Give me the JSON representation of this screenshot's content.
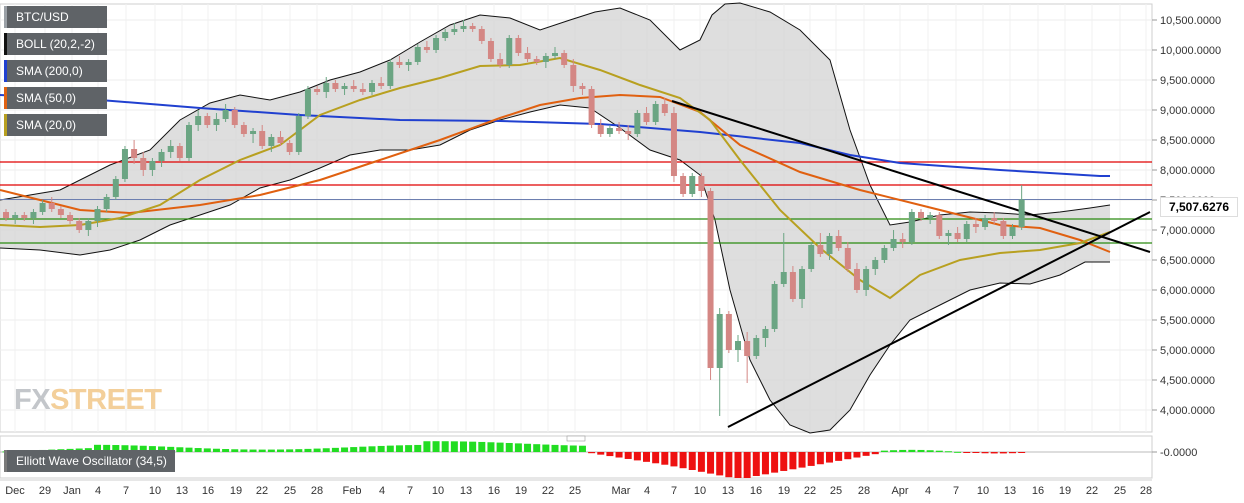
{
  "legend": [
    {
      "label": "BTC/USD",
      "color": "#9aa0a6"
    },
    {
      "label": "BOLL (20,2,-2)",
      "color": "#111111"
    },
    {
      "label": "SMA (200,0)",
      "color": "#2040d0"
    },
    {
      "label": "SMA (50,0)",
      "color": "#e06010"
    },
    {
      "label": "SMA (20,0)",
      "color": "#b8a020"
    }
  ],
  "watermark": {
    "fx": "FX",
    "rest": "STREET"
  },
  "price_tag": "7,507.6276",
  "ewo_label": "Elliott Wave Oscillator (34,5)",
  "ewo_axis_label": "-0.0000",
  "colors": {
    "up": "#6ba583",
    "down": "#d48784",
    "resistance": "#e00000",
    "support": "#2a8a10",
    "band_fill": "#d6d6d6",
    "ewo_pos": "#22dd22",
    "ewo_neg": "#ee1111"
  },
  "chart_data": {
    "type": "candlestick",
    "ylim": [
      3800000,
      10800000
    ],
    "y_ticks": [
      "10,500.0000",
      "10,000.0000",
      "9,500.0000",
      "9,000.0000",
      "8,500.0000",
      "8,000.0000",
      "7,500.0000",
      "7,000.0000",
      "6,500.0000",
      "6,000.0000",
      "5,500.0000",
      "5,000.0000",
      "4,500.0000",
      "4,000.0000"
    ],
    "y_tick_values": [
      10500000,
      10000000,
      9500000,
      9000000,
      8500000,
      8000000,
      7500000,
      7000000,
      6500000,
      6000000,
      5500000,
      5000000,
      4500000,
      4000000
    ],
    "x_ticks": [
      "Dec",
      "29",
      "Jan",
      "4",
      "7",
      "10",
      "13",
      "16",
      "19",
      "22",
      "25",
      "28",
      "Feb",
      "4",
      "7",
      "10",
      "13",
      "16",
      "19",
      "22",
      "25",
      "Mar",
      "4",
      "7",
      "10",
      "13",
      "16",
      "19",
      "22",
      "25",
      "28",
      "Apr",
      "4",
      "7",
      "10",
      "13",
      "16",
      "19",
      "22",
      "25",
      "28"
    ],
    "last_price": 7507627.6,
    "candles": [
      [
        7300000,
        7350000,
        7150000,
        7200000
      ],
      [
        7200000,
        7300000,
        7100000,
        7250000
      ],
      [
        7250000,
        7300000,
        7150000,
        7200000
      ],
      [
        7200000,
        7350000,
        7100000,
        7300000
      ],
      [
        7300000,
        7500000,
        7250000,
        7450000
      ],
      [
        7450000,
        7550000,
        7300000,
        7350000
      ],
      [
        7350000,
        7400000,
        7200000,
        7250000
      ],
      [
        7250000,
        7300000,
        7100000,
        7150000
      ],
      [
        7150000,
        7200000,
        6950000,
        7000000
      ],
      [
        7000000,
        7200000,
        6900000,
        7150000
      ],
      [
        7150000,
        7400000,
        7050000,
        7350000
      ],
      [
        7350000,
        7600000,
        7300000,
        7550000
      ],
      [
        7550000,
        7900000,
        7500000,
        7850000
      ],
      [
        7850000,
        8400000,
        7800000,
        8350000
      ],
      [
        8350000,
        8500000,
        8100000,
        8200000
      ],
      [
        8200000,
        8300000,
        7900000,
        8000000
      ],
      [
        8000000,
        8200000,
        7900000,
        8150000
      ],
      [
        8150000,
        8350000,
        8050000,
        8300000
      ],
      [
        8300000,
        8500000,
        8200000,
        8400000
      ],
      [
        8400000,
        8450000,
        8150000,
        8200000
      ],
      [
        8200000,
        8800000,
        8150000,
        8750000
      ],
      [
        8750000,
        9000000,
        8650000,
        8900000
      ],
      [
        8900000,
        8950000,
        8700000,
        8750000
      ],
      [
        8750000,
        8950000,
        8650000,
        8850000
      ],
      [
        8850000,
        9100000,
        8800000,
        9000000
      ],
      [
        9000000,
        9050000,
        8700000,
        8750000
      ],
      [
        8750000,
        8800000,
        8550000,
        8600000
      ],
      [
        8600000,
        8700000,
        8450000,
        8650000
      ],
      [
        8650000,
        8750000,
        8350000,
        8400000
      ],
      [
        8400000,
        8600000,
        8300000,
        8550000
      ],
      [
        8550000,
        8650000,
        8400000,
        8450000
      ],
      [
        8450000,
        8500000,
        8250000,
        8300000
      ],
      [
        8300000,
        8950000,
        8250000,
        8900000
      ],
      [
        8900000,
        9400000,
        8850000,
        9350000
      ],
      [
        9350000,
        9400000,
        9250000,
        9300000
      ],
      [
        9300000,
        9550000,
        9200000,
        9450000
      ],
      [
        9450000,
        9500000,
        9300000,
        9350000
      ],
      [
        9350000,
        9450000,
        9250000,
        9400000
      ],
      [
        9400000,
        9500000,
        9300000,
        9350000
      ],
      [
        9350000,
        9450000,
        9250000,
        9300000
      ],
      [
        9300000,
        9500000,
        9250000,
        9450000
      ],
      [
        9450000,
        9550000,
        9350000,
        9400000
      ],
      [
        9400000,
        9850000,
        9350000,
        9800000
      ],
      [
        9800000,
        9900000,
        9700000,
        9750000
      ],
      [
        9750000,
        9850000,
        9650000,
        9800000
      ],
      [
        9800000,
        10100000,
        9750000,
        10050000
      ],
      [
        10050000,
        10150000,
        9950000,
        10000000
      ],
      [
        10000000,
        10250000,
        9950000,
        10200000
      ],
      [
        10200000,
        10350000,
        10150000,
        10300000
      ],
      [
        10300000,
        10450000,
        10250000,
        10350000
      ],
      [
        10350000,
        10500000,
        10300000,
        10400000
      ],
      [
        10400000,
        10450000,
        10300000,
        10350000
      ],
      [
        10350000,
        10400000,
        10100000,
        10150000
      ],
      [
        10150000,
        10200000,
        9800000,
        9850000
      ],
      [
        9850000,
        9950000,
        9700000,
        9750000
      ],
      [
        9750000,
        10250000,
        9700000,
        10200000
      ],
      [
        10200000,
        10250000,
        9900000,
        9950000
      ],
      [
        9950000,
        10050000,
        9800000,
        9850000
      ],
      [
        9850000,
        9900000,
        9750000,
        9800000
      ],
      [
        9800000,
        9950000,
        9700000,
        9900000
      ],
      [
        9900000,
        10050000,
        9850000,
        9950000
      ],
      [
        9950000,
        10000000,
        9700000,
        9750000
      ],
      [
        9750000,
        9850000,
        9300000,
        9400000
      ],
      [
        9400000,
        9450000,
        9250000,
        9350000
      ],
      [
        9350000,
        9400000,
        8700000,
        8750000
      ],
      [
        8750000,
        8850000,
        8550000,
        8600000
      ],
      [
        8600000,
        8750000,
        8550000,
        8700000
      ],
      [
        8700000,
        8800000,
        8600000,
        8650000
      ],
      [
        8650000,
        8750000,
        8500000,
        8600000
      ],
      [
        8600000,
        9000000,
        8550000,
        8950000
      ],
      [
        8950000,
        9050000,
        8750000,
        8800000
      ],
      [
        8800000,
        9150000,
        8750000,
        9100000
      ],
      [
        9100000,
        9200000,
        8900000,
        8950000
      ],
      [
        8950000,
        9050000,
        7800000,
        7900000
      ],
      [
        7900000,
        7950000,
        7550000,
        7600000
      ],
      [
        7600000,
        7950000,
        7550000,
        7900000
      ],
      [
        7900000,
        7950000,
        7550000,
        7650000
      ],
      [
        7650000,
        7700000,
        4500000,
        4700000
      ],
      [
        4700000,
        5700000,
        3900000,
        5600000
      ],
      [
        5600000,
        5650000,
        4950000,
        5000000
      ],
      [
        5000000,
        5250000,
        4800000,
        5150000
      ],
      [
        5150000,
        5300000,
        4450000,
        4900000
      ],
      [
        4900000,
        5250000,
        4850000,
        5200000
      ],
      [
        5200000,
        5400000,
        5050000,
        5350000
      ],
      [
        5350000,
        6150000,
        5300000,
        6100000
      ],
      [
        6100000,
        6950000,
        6050000,
        6300000
      ],
      [
        6300000,
        6400000,
        5800000,
        5850000
      ],
      [
        5850000,
        6400000,
        5700000,
        6350000
      ],
      [
        6350000,
        6800000,
        6300000,
        6750000
      ],
      [
        6750000,
        6950000,
        6550000,
        6600000
      ],
      [
        6600000,
        6950000,
        6500000,
        6900000
      ],
      [
        6900000,
        7000000,
        6650000,
        6700000
      ],
      [
        6700000,
        6800000,
        6300000,
        6350000
      ],
      [
        6350000,
        6450000,
        5950000,
        6000000
      ],
      [
        6000000,
        6400000,
        5900000,
        6350000
      ],
      [
        6350000,
        6550000,
        6250000,
        6500000
      ],
      [
        6500000,
        6750000,
        6450000,
        6700000
      ],
      [
        6700000,
        7000000,
        6650000,
        6850000
      ],
      [
        6850000,
        6950000,
        6700000,
        6800000
      ],
      [
        6800000,
        7350000,
        6750000,
        7300000
      ],
      [
        7300000,
        7350000,
        7150000,
        7200000
      ],
      [
        7200000,
        7300000,
        7100000,
        7250000
      ],
      [
        7250000,
        7300000,
        6850000,
        6900000
      ],
      [
        6900000,
        7000000,
        6750000,
        6950000
      ],
      [
        6950000,
        7050000,
        6800000,
        6850000
      ],
      [
        6850000,
        7150000,
        6800000,
        7100000
      ],
      [
        7100000,
        7200000,
        6950000,
        7050000
      ],
      [
        7050000,
        7250000,
        7000000,
        7200000
      ],
      [
        7200000,
        7300000,
        7100000,
        7150000
      ],
      [
        7150000,
        7200000,
        6850000,
        6900000
      ],
      [
        6900000,
        7100000,
        6850000,
        7050000
      ],
      [
        7050000,
        7750000,
        7000000,
        7508000
      ]
    ]
  }
}
